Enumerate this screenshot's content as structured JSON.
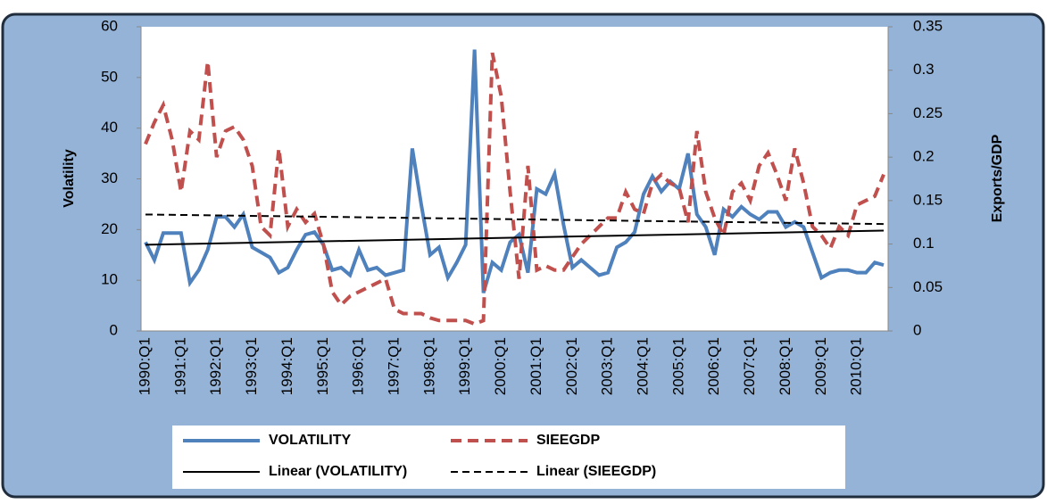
{
  "chart_data": {
    "type": "line",
    "categories": [
      "1990:Q1",
      null,
      null,
      null,
      "1991:Q1",
      null,
      null,
      null,
      "1992:Q1",
      null,
      null,
      null,
      "1993:Q1",
      null,
      null,
      null,
      "1994:Q1",
      null,
      null,
      null,
      "1995:Q1",
      null,
      null,
      null,
      "1996:Q1",
      null,
      null,
      null,
      "1997:Q1",
      null,
      null,
      null,
      "1998:Q1",
      null,
      null,
      null,
      "1999:Q1",
      null,
      null,
      null,
      "2000:Q1",
      null,
      null,
      null,
      "2001:Q1",
      null,
      null,
      null,
      "2002:Q1",
      null,
      null,
      null,
      "2003:Q1",
      null,
      null,
      null,
      "2004:Q1",
      null,
      null,
      null,
      "2005:Q1",
      null,
      null,
      null,
      "2006:Q1",
      null,
      null,
      null,
      "2007:Q1",
      null,
      null,
      null,
      "2008:Q1",
      null,
      null,
      null,
      "2009:Q1",
      null,
      null,
      null,
      "2010:Q1",
      null,
      null,
      null
    ],
    "y_label": "Volatility",
    "y2_label": "Exports/GDP",
    "ylim": [
      0,
      60
    ],
    "yticks": [
      0,
      10,
      20,
      30,
      40,
      50,
      60
    ],
    "y2lim": [
      0,
      0.35
    ],
    "y2ticks": [
      0,
      0.05,
      0.1,
      0.15,
      0.2,
      0.25,
      0.3,
      0.35
    ],
    "legend": "bottom",
    "series": [
      {
        "name": "VOLATILITY",
        "color": "#4f81bd",
        "style": "solid",
        "axis": "y",
        "values": [
          17.5,
          14,
          19.3,
          19.3,
          19.3,
          9.5,
          12,
          16,
          22.5,
          22.5,
          20.5,
          23,
          16.5,
          15.5,
          14.5,
          11.5,
          12.5,
          16,
          19,
          19.5,
          17,
          12,
          12.5,
          11,
          16,
          12,
          12.5,
          11,
          11.5,
          12,
          36,
          25,
          15,
          16.5,
          10.5,
          13.5,
          17,
          55.5,
          7.5,
          13.5,
          12,
          17.5,
          19,
          11.5,
          28,
          27,
          31,
          21,
          12.5,
          14,
          12.5,
          11,
          11.5,
          16.5,
          17.5,
          19.5,
          27,
          30.5,
          27.5,
          29.5,
          28,
          35,
          23,
          20.5,
          15,
          24,
          22.5,
          24.5,
          23,
          22,
          23.5,
          23.5,
          20.5,
          21.5,
          20.5,
          15.5,
          10.5,
          11.5,
          12,
          12,
          11.5,
          11.5,
          13.5,
          13
        ]
      },
      {
        "name": "SIEEGDP",
        "color": "#c0504d",
        "style": "dashed",
        "axis": "y2",
        "values": [
          0.215,
          0.24,
          0.26,
          0.22,
          0.16,
          0.23,
          0.22,
          0.31,
          0.2,
          0.23,
          0.235,
          0.22,
          0.19,
          0.12,
          0.11,
          0.21,
          0.12,
          0.14,
          0.125,
          0.135,
          0.1,
          0.045,
          0.03,
          0.04,
          0.045,
          0.05,
          0.055,
          0.06,
          0.025,
          0.02,
          0.02,
          0.02,
          0.015,
          0.012,
          0.012,
          0.012,
          0.012,
          0.008,
          0.012,
          0.32,
          0.27,
          0.16,
          0.06,
          0.19,
          0.07,
          0.075,
          0.07,
          0.07,
          0.085,
          0.1,
          0.11,
          0.12,
          0.13,
          0.13,
          0.16,
          0.14,
          0.135,
          0.17,
          0.18,
          0.17,
          0.165,
          0.125,
          0.23,
          0.16,
          0.13,
          0.11,
          0.16,
          0.17,
          0.15,
          0.19,
          0.205,
          0.18,
          0.15,
          0.21,
          0.17,
          0.12,
          0.11,
          0.095,
          0.12,
          0.11,
          0.145,
          0.15,
          0.155,
          0.18
        ]
      }
    ],
    "trendlines": [
      {
        "name": "Linear (VOLATILITY)",
        "color": "#000000",
        "style": "solid",
        "axis": "y",
        "values": [
          17,
          19.8
        ]
      },
      {
        "name": "Linear (SIEEGDP)",
        "color": "#000000",
        "style": "dashed",
        "axis": "y2",
        "values": [
          0.134,
          0.123
        ]
      }
    ]
  }
}
